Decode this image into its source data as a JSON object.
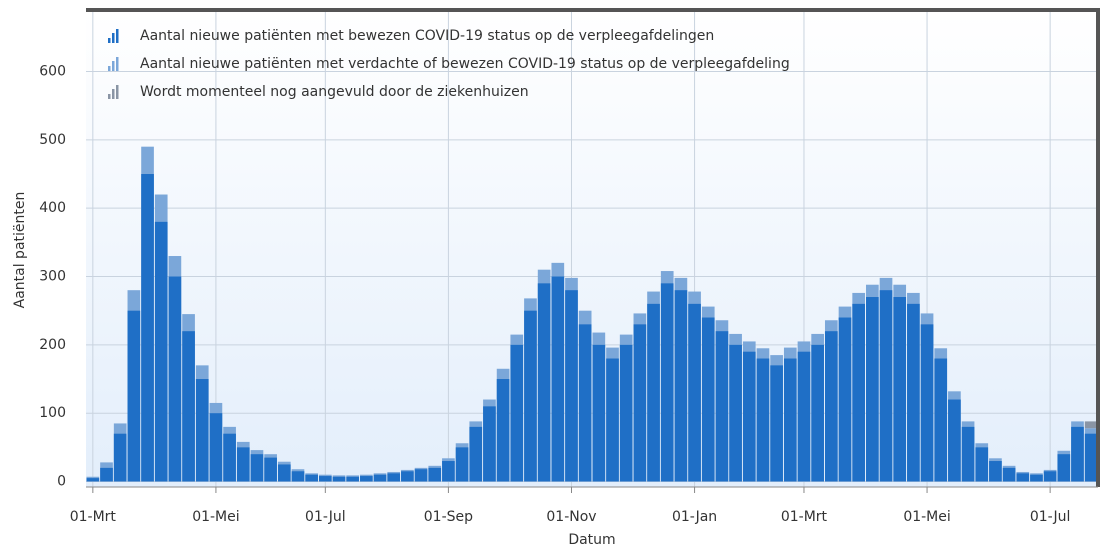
{
  "chart_data": {
    "type": "bar",
    "x_label": "Datum",
    "y_label": "Aantal patiënten",
    "categories": [
      "01-Mrt",
      null,
      null,
      null,
      null,
      null,
      null,
      null,
      null,
      "01-Mei",
      null,
      null,
      null,
      null,
      null,
      null,
      null,
      "01-Jul",
      null,
      null,
      null,
      null,
      null,
      null,
      null,
      null,
      "01-Sep",
      null,
      null,
      null,
      null,
      null,
      null,
      null,
      null,
      "01-Nov",
      null,
      null,
      null,
      null,
      null,
      null,
      null,
      null,
      "01-Jan",
      null,
      null,
      null,
      null,
      null,
      null,
      null,
      "01-Mrt",
      null,
      null,
      null,
      null,
      null,
      null,
      null,
      null,
      "01-Mei",
      null,
      null,
      null,
      null,
      null,
      null,
      null,
      null,
      "01-Jul",
      null,
      null,
      null
    ],
    "series": [
      {
        "name": "Aantal nieuwe patiënten met bewezen COVID-19 status op de verpleegafdelingen",
        "color": "#1f6fc6",
        "values": [
          5,
          20,
          70,
          250,
          450,
          380,
          300,
          220,
          150,
          100,
          70,
          50,
          40,
          35,
          25,
          15,
          10,
          8,
          7,
          7,
          8,
          10,
          12,
          15,
          18,
          20,
          30,
          50,
          80,
          110,
          150,
          200,
          250,
          290,
          300,
          280,
          230,
          200,
          180,
          200,
          230,
          260,
          290,
          280,
          260,
          240,
          220,
          200,
          190,
          180,
          170,
          180,
          190,
          200,
          220,
          240,
          260,
          270,
          280,
          270,
          260,
          230,
          180,
          120,
          80,
          50,
          30,
          20,
          12,
          10,
          15,
          40,
          80,
          70
        ]
      },
      {
        "name": "Aantal nieuwe patiënten met verdachte of bewezen COVID-19 status op de verpleegafdeling",
        "color": "#7ba7d9",
        "values": [
          7,
          28,
          85,
          280,
          490,
          420,
          330,
          245,
          170,
          115,
          80,
          58,
          46,
          40,
          29,
          18,
          12,
          10,
          9,
          9,
          10,
          12,
          14,
          17,
          20,
          23,
          34,
          56,
          88,
          120,
          165,
          215,
          268,
          310,
          320,
          298,
          250,
          218,
          196,
          215,
          246,
          278,
          308,
          298,
          278,
          256,
          236,
          216,
          205,
          195,
          185,
          196,
          205,
          216,
          236,
          256,
          276,
          288,
          298,
          288,
          276,
          246,
          195,
          132,
          88,
          56,
          34,
          23,
          14,
          12,
          17,
          45,
          88,
          78
        ]
      },
      {
        "name": "Wordt momenteel nog aangevuld door de ziekenhuizen",
        "color": "#8a95a5",
        "values": [
          null,
          null,
          null,
          null,
          null,
          null,
          null,
          null,
          null,
          null,
          null,
          null,
          null,
          null,
          null,
          null,
          null,
          null,
          null,
          null,
          null,
          null,
          null,
          null,
          null,
          null,
          null,
          null,
          null,
          null,
          null,
          null,
          null,
          null,
          null,
          null,
          null,
          null,
          null,
          null,
          null,
          null,
          null,
          null,
          null,
          null,
          null,
          null,
          null,
          null,
          null,
          null,
          null,
          null,
          null,
          null,
          null,
          null,
          null,
          null,
          null,
          null,
          null,
          null,
          null,
          null,
          null,
          null,
          null,
          null,
          null,
          null,
          null,
          10
        ]
      }
    ],
    "ylim": [
      -8,
      690
    ],
    "yticks": [
      0,
      100,
      200,
      300,
      400,
      500,
      600
    ],
    "grid": true
  }
}
